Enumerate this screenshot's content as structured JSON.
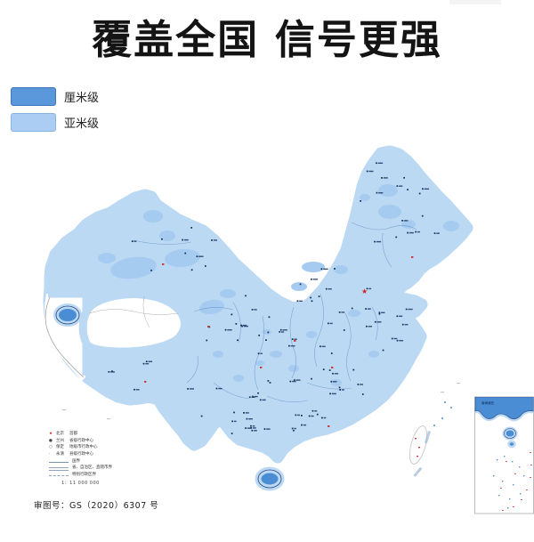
{
  "title": "覆盖全国 信号更强",
  "coverage_legend": {
    "items": [
      {
        "label": "厘米级",
        "color": "#5b97db"
      },
      {
        "label": "亚米级",
        "color": "#abcdf4"
      }
    ]
  },
  "map": {
    "inset_title": "南海诸岛",
    "colors": {
      "centimeter_blue": "#4a8dd4",
      "submeter_blue": "#a6cbf0",
      "halo_blue": "#bcd9f4",
      "boundary_navy": "#27457e",
      "city_mark_navy": "#16294e",
      "capital_red": "#cf2b2b"
    },
    "legend_box": {
      "symbol_rows": [
        {
          "symbol": "★",
          "name": "北京",
          "desc": "首都"
        },
        {
          "symbol": "●",
          "name": "兰州",
          "desc": "省级行政中心"
        },
        {
          "symbol": "○",
          "name": "保定",
          "desc": "地级市行政中心"
        },
        {
          "symbol": "·",
          "name": "永清",
          "desc": "县级行政中心"
        }
      ],
      "line_rows": [
        {
          "style": "solid",
          "label": "国界"
        },
        {
          "style": "double",
          "label": "省、自治区、直辖市界"
        },
        {
          "style": "dashdot",
          "label": "特别行政区界"
        }
      ],
      "scale": "1：11 000 000"
    }
  },
  "footer": {
    "approval_number": "审图号：GS（2020）6307 号"
  }
}
